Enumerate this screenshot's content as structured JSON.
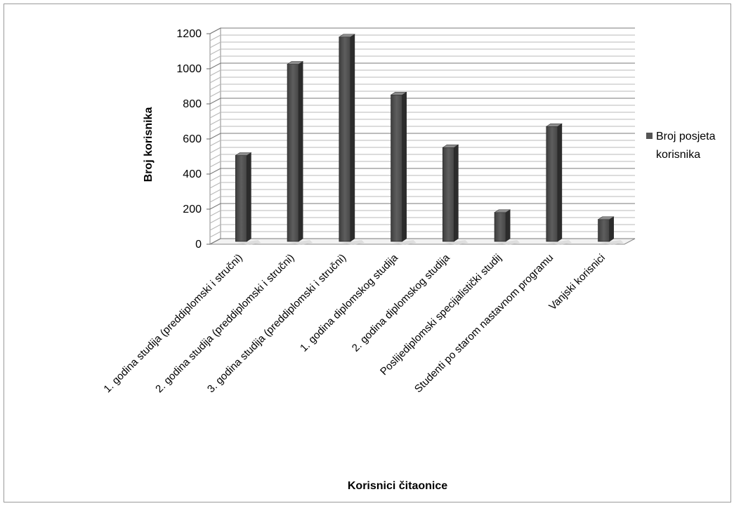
{
  "chart_data": {
    "type": "bar",
    "categories": [
      "1. godina studija (preddiplomski i stručni)",
      "2. godina studija (preddiplomski i stručni)",
      "3. godina studija (preddiplomski i stručni)",
      "1. godina diplomskog studija",
      "2. godina diplomskog studija",
      "Poslijediplomski specijalistički studij",
      "Studenti po starom nastavnom programu",
      "Vanjski korisnici"
    ],
    "series": [
      {
        "name": "Broj posjeta korisnika",
        "values": [
          490,
          1010,
          1165,
          835,
          535,
          165,
          655,
          125
        ]
      }
    ],
    "yticks": [
      "0",
      "200",
      "400",
      "600",
      "800",
      "1000",
      "1200"
    ],
    "ylim": [
      0,
      1200
    ],
    "xlabel": "Korisnici čitaonice",
    "ylabel": "Broj korisnika",
    "legend_position": "right",
    "legend_lines": [
      "Broj posjeta",
      "korisnika"
    ],
    "bar_color": "#555555",
    "style": "3d-clustered-column",
    "grid": true
  }
}
